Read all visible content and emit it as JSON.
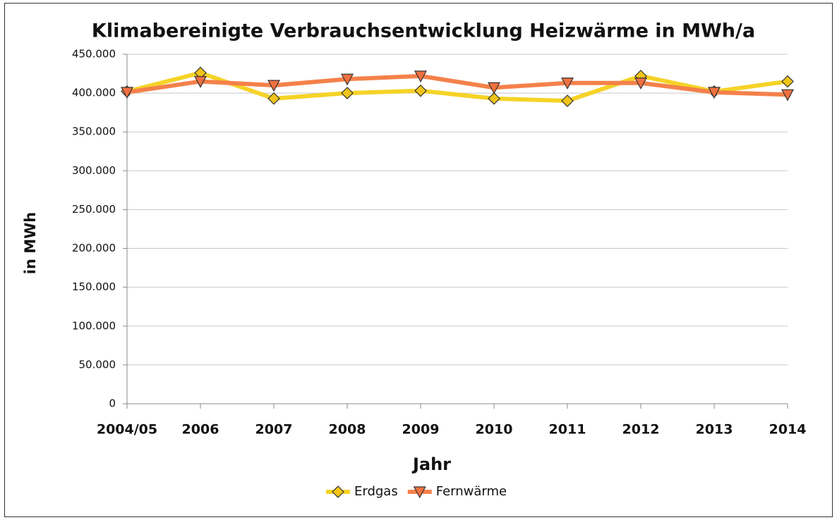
{
  "chart_data": {
    "type": "line",
    "title": "Klimabereinigte Verbrauchsentwicklung Heizwärme in MWh/a",
    "x_label": "Jahr",
    "y_label": "in MWh",
    "categories": [
      "2004/05",
      "2006",
      "2007",
      "2008",
      "2009",
      "2010",
      "2011",
      "2012",
      "2013",
      "2014"
    ],
    "series": [
      {
        "name": "Erdgas",
        "color": "#f5d327",
        "marker": "diamond",
        "marker_color": "#f0c419",
        "values": [
          402000,
          426000,
          393000,
          400000,
          403000,
          393000,
          390000,
          422000,
          402000,
          415000
        ]
      },
      {
        "name": "Fernwärme",
        "color": "#f4814a",
        "marker": "triangle-down",
        "marker_color": "#f07040",
        "values": [
          401000,
          415000,
          410000,
          418000,
          422000,
          407000,
          413000,
          413000,
          401000,
          398000
        ]
      }
    ],
    "ylim": [
      0,
      450000
    ],
    "yticks": [
      0,
      {
        "value": 50000,
        "label": "50.000"
      },
      {
        "value": 100000,
        "label": "100.000"
      },
      {
        "value": 150000,
        "label": "150.000"
      },
      {
        "value": 200000,
        "label": "200.000"
      },
      {
        "value": 250000,
        "label": "250.000"
      },
      {
        "value": 300000,
        "label": "300.000"
      },
      {
        "value": 350000,
        "label": "350.000"
      },
      {
        "value": 400000,
        "label": "400.000"
      },
      {
        "value": 450000,
        "label": "450.000"
      }
    ],
    "grid": true,
    "legend": "bottom"
  }
}
